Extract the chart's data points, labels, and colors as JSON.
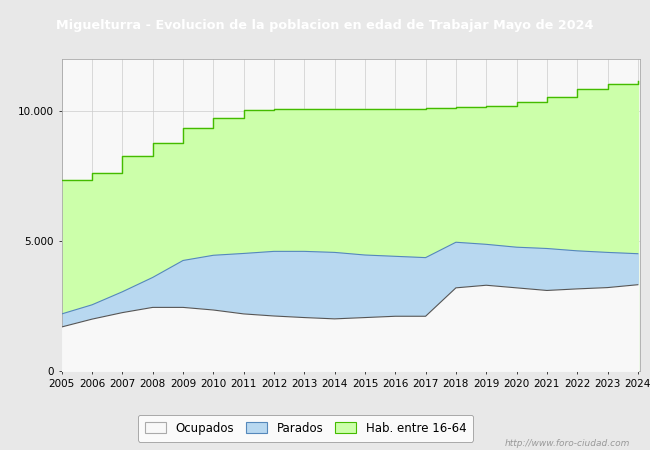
{
  "title": "Miguelturra - Evolucion de la poblacion en edad de Trabajar Mayo de 2024",
  "title_color": "#ffffff",
  "title_bg_color": "#3a6abf",
  "years": [
    2005,
    2006,
    2007,
    2008,
    2009,
    2010,
    2011,
    2012,
    2013,
    2014,
    2015,
    2016,
    2017,
    2018,
    2019,
    2020,
    2021,
    2022,
    2023,
    2024
  ],
  "hab_16_64": [
    7350,
    7600,
    8250,
    8750,
    9350,
    9700,
    10020,
    10080,
    10080,
    10050,
    10060,
    10080,
    10100,
    10130,
    10180,
    10340,
    10520,
    10820,
    11020,
    11120
  ],
  "parados": [
    2200,
    2550,
    3050,
    3600,
    4250,
    4450,
    4520,
    4600,
    4600,
    4560,
    4460,
    4410,
    4360,
    4950,
    4870,
    4760,
    4710,
    4620,
    4560,
    4510
  ],
  "ocupados": [
    1700,
    2000,
    2250,
    2450,
    2450,
    2350,
    2200,
    2120,
    2060,
    2010,
    2060,
    2110,
    2110,
    3200,
    3300,
    3200,
    3100,
    3160,
    3210,
    3320
  ],
  "ylim": [
    0,
    12000
  ],
  "yticks": [
    0,
    5000,
    10000
  ],
  "ytick_labels": [
    "0",
    "5.000",
    "10.000"
  ],
  "color_hab": "#ccffaa",
  "color_hab_edge": "#44bb00",
  "color_parados": "#b8d8f0",
  "color_parados_edge": "#5588bb",
  "color_ocupados": "#f8f8f8",
  "color_ocupados_edge": "#555555",
  "plot_bg": "#f8f8f8",
  "fig_bg": "#e8e8e8",
  "grid_color": "#cccccc",
  "watermark": "http://www.foro-ciudad.com",
  "legend_labels": [
    "Ocupados",
    "Parados",
    "Hab. entre 16-64"
  ]
}
